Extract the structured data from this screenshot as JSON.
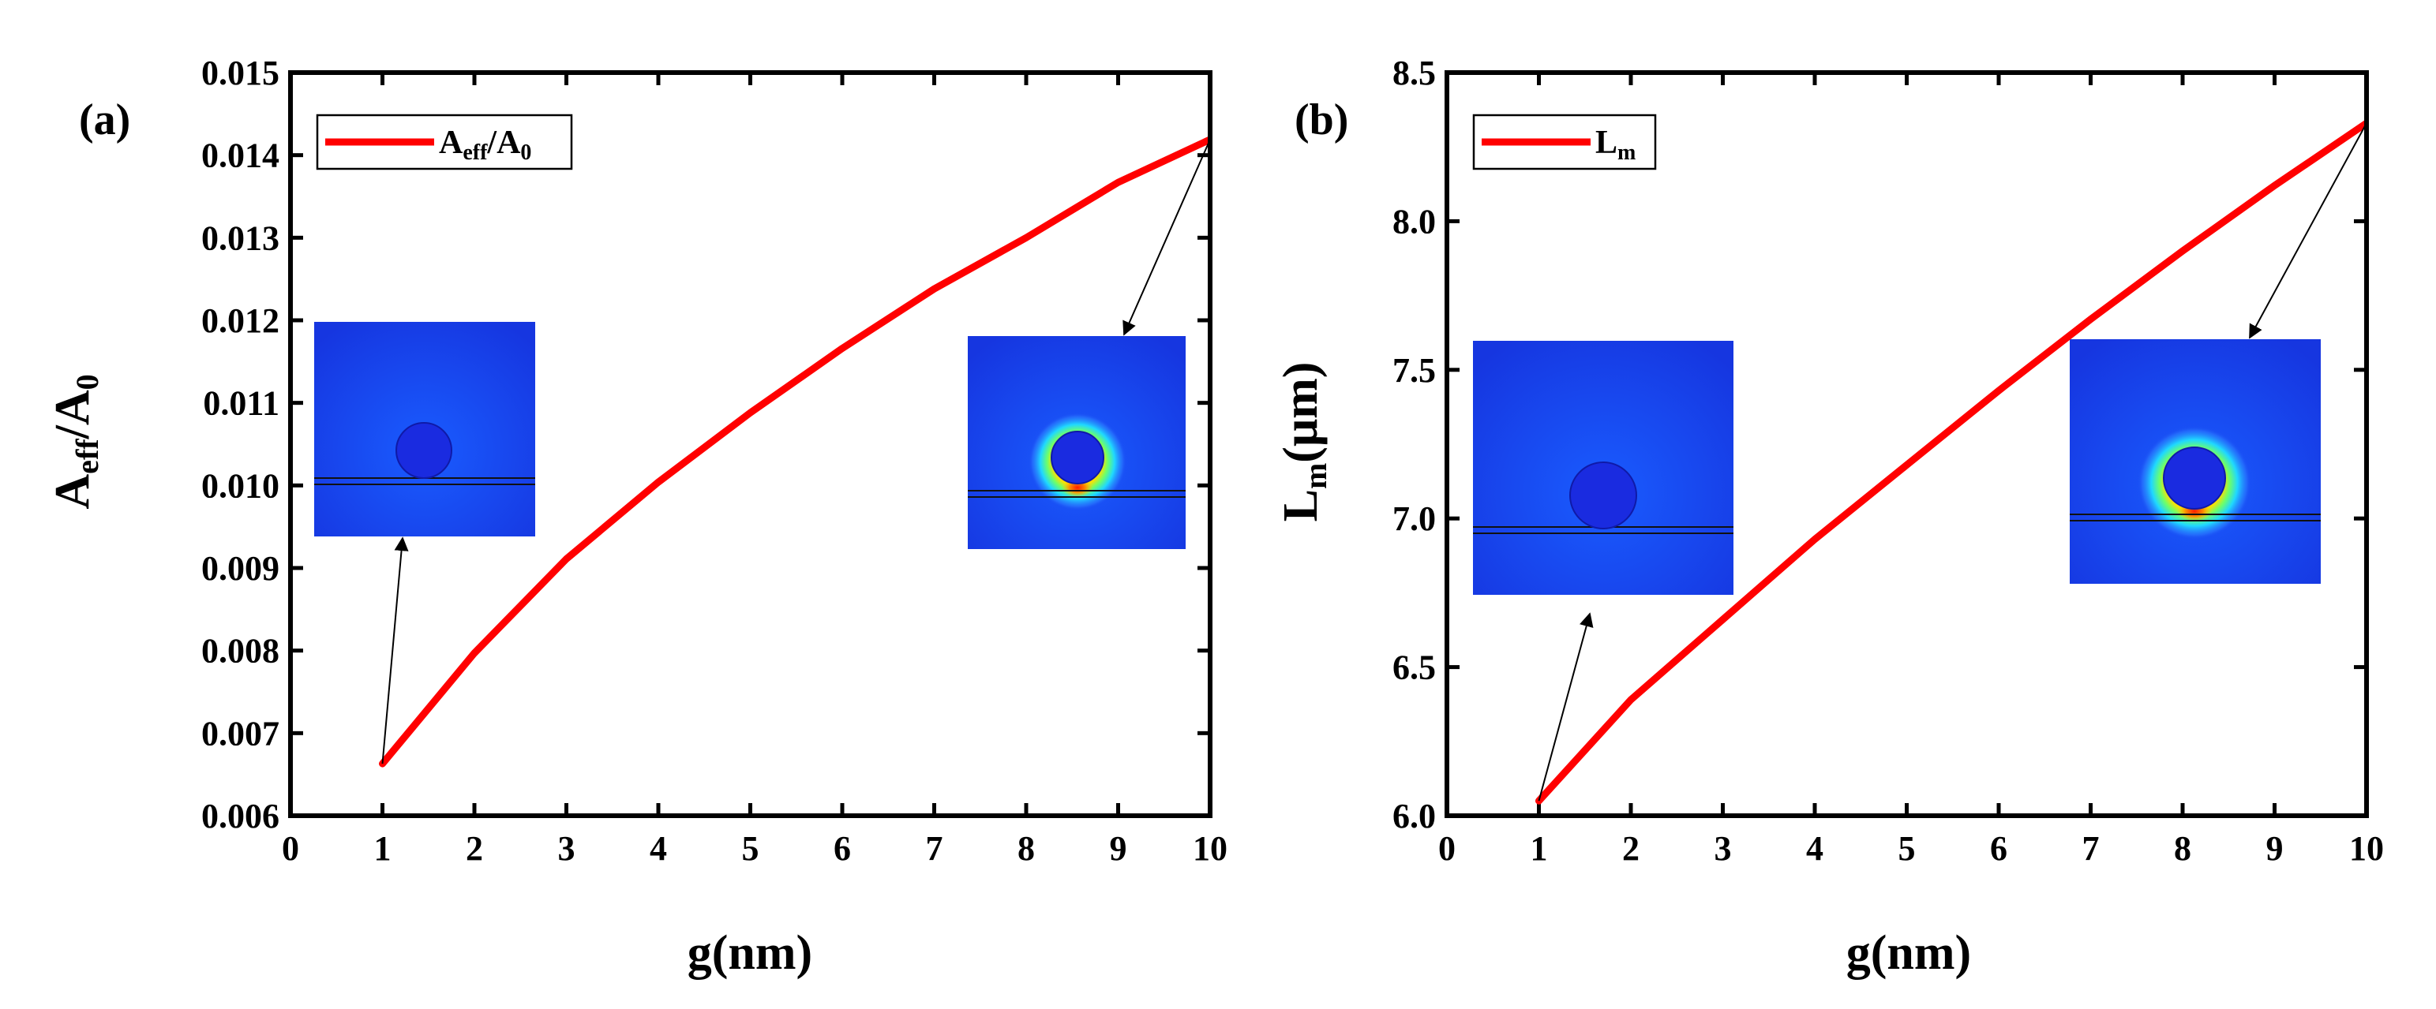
{
  "chart_data": [
    {
      "panel": "(a)",
      "type": "line",
      "x": [
        1,
        2,
        3,
        4,
        5,
        6,
        7,
        8,
        9,
        10
      ],
      "series": [
        {
          "name": "Aeff/A0",
          "legend_main": "A",
          "legend_sub1": "eff",
          "legend_mid": "/A",
          "legend_sub2": "0",
          "color": "#ff0000",
          "values": [
            0.00663,
            0.00797,
            0.00911,
            0.01004,
            0.01088,
            0.01166,
            0.01238,
            0.013,
            0.01367,
            0.01419
          ]
        }
      ],
      "xlabel": "g(nm)",
      "ylabel_main": "A",
      "ylabel_sub1": "eff",
      "ylabel_mid": "/A",
      "ylabel_sub2": "0",
      "xlim": [
        0,
        10
      ],
      "ylim": [
        0.006,
        0.015
      ],
      "xticks": [
        0,
        1,
        2,
        3,
        4,
        5,
        6,
        7,
        8,
        9,
        10
      ],
      "yticks": [
        0.006,
        0.007,
        0.008,
        0.009,
        0.01,
        0.011,
        0.012,
        0.013,
        0.014,
        0.015
      ],
      "ytick_labels": [
        "0.006",
        "0.007",
        "0.008",
        "0.009",
        "0.010",
        "0.011",
        "0.012",
        "0.013",
        "0.014",
        "0.015"
      ],
      "legend_position": "top-left",
      "annotations": [
        {
          "type": "arrow",
          "from_x": 1,
          "from_y": 0.00663,
          "to_inset": "left",
          "inset_desc": "field map g=1nm"
        },
        {
          "type": "arrow",
          "from_x": 10,
          "from_y": 0.01419,
          "to_inset": "right",
          "inset_desc": "field map g=10nm"
        }
      ]
    },
    {
      "panel": "(b)",
      "type": "line",
      "x": [
        1,
        2,
        3,
        4,
        5,
        6,
        7,
        8,
        9,
        10
      ],
      "series": [
        {
          "name": "Lm",
          "legend_main": "L",
          "legend_sub1": "m",
          "color": "#ff0000",
          "values": [
            6.05,
            6.39,
            6.66,
            6.93,
            7.18,
            7.43,
            7.67,
            7.9,
            8.12,
            8.33
          ]
        }
      ],
      "xlabel": "g(nm)",
      "ylabel_main": "L",
      "ylabel_sub1": "m",
      "ylabel_tail": "(μm)",
      "xlim": [
        0,
        10
      ],
      "ylim": [
        6.0,
        8.5
      ],
      "xticks": [
        0,
        1,
        2,
        3,
        4,
        5,
        6,
        7,
        8,
        9,
        10
      ],
      "yticks": [
        6.0,
        6.5,
        7.0,
        7.5,
        8.0,
        8.5
      ],
      "ytick_labels": [
        "6.0",
        "6.5",
        "7.0",
        "7.5",
        "8.0",
        "8.5"
      ],
      "legend_position": "top-left",
      "annotations": [
        {
          "type": "arrow",
          "from_x": 1,
          "from_y": 6.05,
          "to_inset": "left",
          "inset_desc": "field map g=1nm"
        },
        {
          "type": "arrow",
          "from_x": 10,
          "from_y": 8.33,
          "to_inset": "right",
          "inset_desc": "field map g=10nm"
        }
      ]
    }
  ]
}
